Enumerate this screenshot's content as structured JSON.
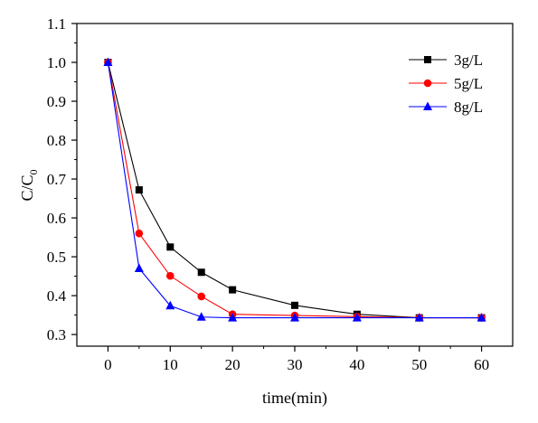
{
  "chart_data": {
    "type": "line",
    "title": "",
    "xlabel": "time(min)",
    "ylabel_main": "C/C",
    "ylabel_sub": "0",
    "xlim": [
      -5,
      65
    ],
    "ylim": [
      0.27,
      1.1
    ],
    "xticks": [
      0,
      10,
      20,
      30,
      40,
      50,
      60
    ],
    "xtick_labels": [
      "0",
      "10",
      "20",
      "30",
      "40",
      "50",
      "60"
    ],
    "yticks": [
      0.3,
      0.4,
      0.5,
      0.6,
      0.7,
      0.8,
      0.9,
      1.0,
      1.1
    ],
    "ytick_labels": [
      "0.3",
      "0.4",
      "0.5",
      "0.6",
      "0.7",
      "0.8",
      "0.9",
      "1.0",
      "1.1"
    ],
    "grid": false,
    "legend_position": "top-right",
    "x": [
      0,
      5,
      10,
      15,
      20,
      30,
      40,
      50,
      60
    ],
    "series": [
      {
        "name": "3g/L",
        "color": "#000000",
        "marker": "square",
        "values": [
          1.0,
          0.672,
          0.525,
          0.46,
          0.415,
          0.375,
          0.352,
          0.343,
          0.343
        ]
      },
      {
        "name": "5g/L",
        "color": "#ff0000",
        "marker": "circle",
        "values": [
          1.0,
          0.56,
          0.451,
          0.398,
          0.352,
          0.349,
          0.346,
          0.343,
          0.343
        ]
      },
      {
        "name": "8g/L",
        "color": "#0000ff",
        "marker": "triangle",
        "values": [
          1.0,
          0.47,
          0.374,
          0.345,
          0.343,
          0.343,
          0.343,
          0.343,
          0.343
        ]
      }
    ]
  }
}
